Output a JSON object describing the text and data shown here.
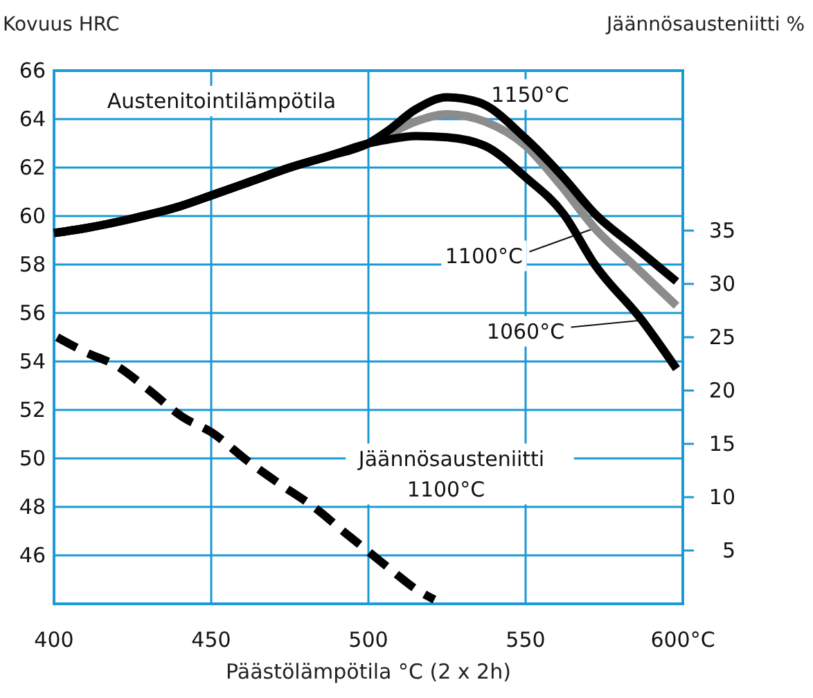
{
  "chart_data": {
    "type": "line",
    "xlabel": "Päästölämpötila °C (2 x 2h)",
    "ylabel": "Kovuus HRC",
    "y2label": "Jäännösausteniitti %",
    "xlim": [
      400,
      600
    ],
    "xticks": [
      400,
      450,
      500,
      550,
      {
        "value": 600,
        "label": "600°C"
      }
    ],
    "ylim": [
      44,
      66
    ],
    "yticks": [
      46,
      48,
      50,
      52,
      54,
      56,
      58,
      60,
      62,
      64,
      66
    ],
    "y2lim": [
      0,
      50
    ],
    "y2ticks": [
      5,
      10,
      15,
      20,
      25,
      30,
      35
    ],
    "grid": true,
    "marker": "none",
    "series": [
      {
        "color": "#8c8c8c",
        "x": [
          400,
          410,
          425,
          440,
          450,
          462,
          475,
          488,
          500,
          506,
          515,
          525,
          537,
          550,
          561,
          572,
          585,
          598
        ],
        "values": [
          59.3,
          59.5,
          59.9,
          60.4,
          60.85,
          61.4,
          62.0,
          62.5,
          63.0,
          63.35,
          63.9,
          64.2,
          63.9,
          62.9,
          61.3,
          59.5,
          57.9,
          56.3
        ]
      },
      {
        "name": "1060°C",
        "color": "#000000",
        "x": [
          400,
          410,
          425,
          440,
          450,
          462,
          475,
          488,
          500,
          506,
          515,
          525,
          537,
          550,
          562,
          572,
          587,
          598
        ],
        "values": [
          59.3,
          59.5,
          59.9,
          60.4,
          60.85,
          61.4,
          62.0,
          62.5,
          63.0,
          63.15,
          63.3,
          63.25,
          62.9,
          61.6,
          60.1,
          58.0,
          55.7,
          53.7
        ]
      },
      {
        "name": "1150°C",
        "color": "#000000",
        "x": [
          400,
          410,
          425,
          440,
          450,
          462,
          475,
          488,
          500,
          506,
          515,
          525,
          535,
          550,
          562,
          572,
          585,
          598
        ],
        "values": [
          59.3,
          59.5,
          59.9,
          60.4,
          60.85,
          61.4,
          62.0,
          62.5,
          63.0,
          63.5,
          64.4,
          64.9,
          64.7,
          63.2,
          61.6,
          60.1,
          58.7,
          57.3
        ]
      },
      {
        "name": "Jäännösausteniitti 1100°C",
        "color": "#000000",
        "axis": "y2",
        "line_style": "dashed",
        "x": [
          401,
          410,
          420,
          430,
          441,
          450,
          462,
          472,
          483,
          492,
          500,
          508,
          515,
          521
        ],
        "values": [
          25,
          23.6,
          22.3,
          20.1,
          17.5,
          16.1,
          13.3,
          11.2,
          9.0,
          6.8,
          4.9,
          3.0,
          1.4,
          0.4
        ]
      }
    ],
    "annotations": [
      "Austenitointilämpötila",
      {
        "text": "1100°C",
        "x": 572,
        "y": 59.5
      }
    ]
  }
}
